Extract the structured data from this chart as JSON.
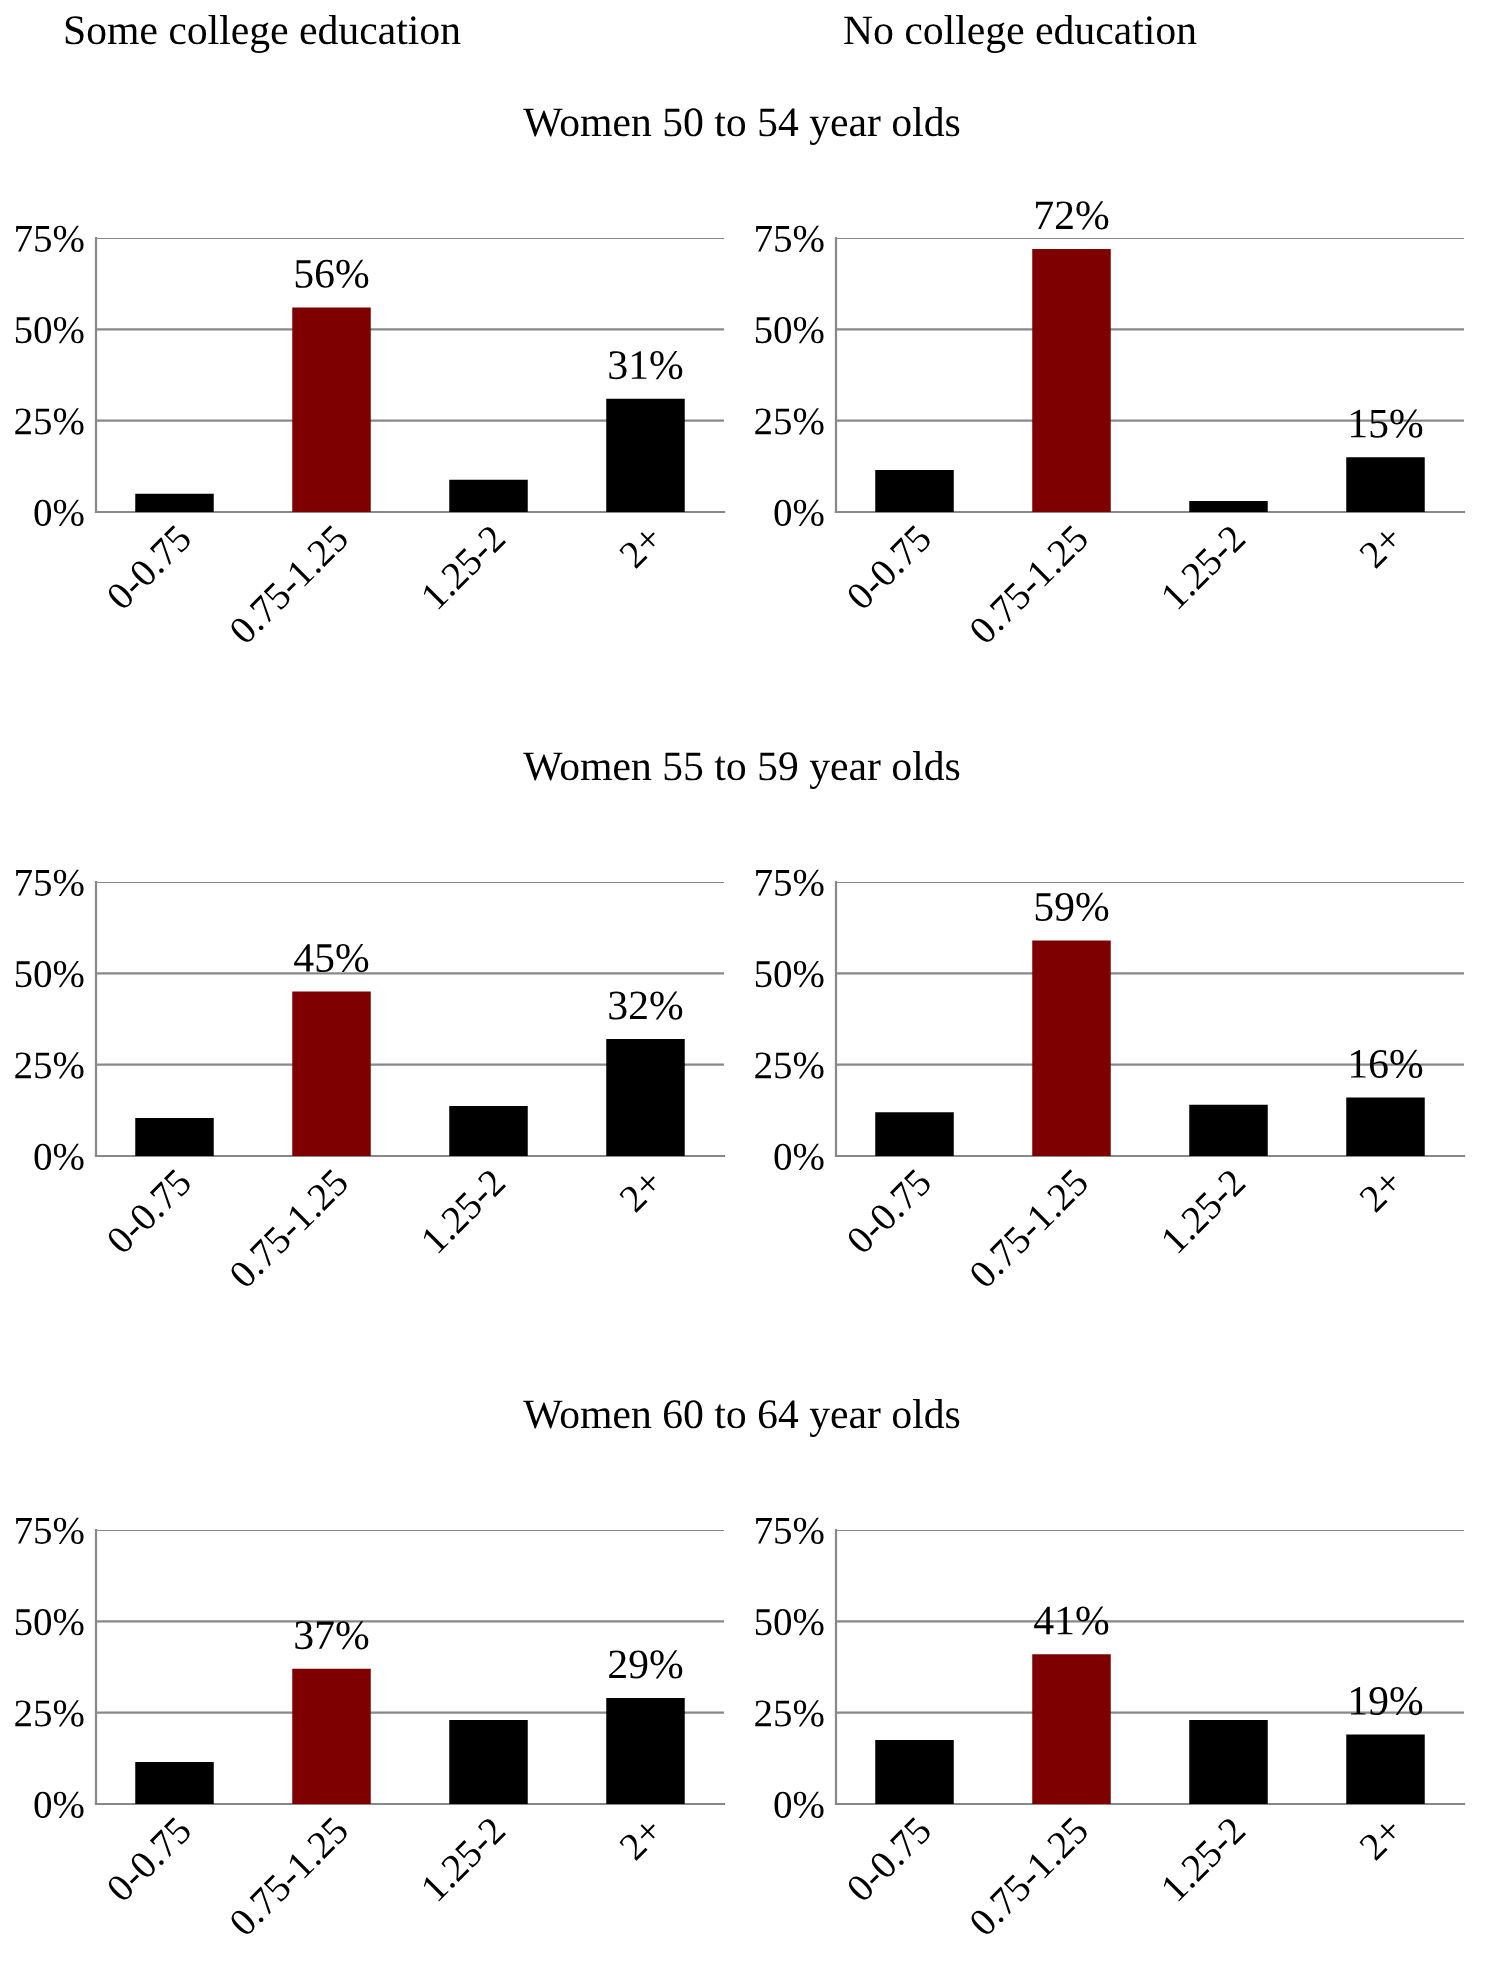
{
  "chart_data": [
    {
      "type": "bar",
      "subtitle": "Some college education",
      "title": "Women 50 to 54 year olds",
      "categories": [
        "0-0.75",
        "0.75-1.25",
        "1.25-2",
        "2+"
      ],
      "values": [
        5,
        56,
        8.8,
        31
      ],
      "value_labels": [
        null,
        "56%",
        null,
        "31%"
      ],
      "colors": [
        "#000000",
        "#7f0000",
        "#000000",
        "#000000"
      ],
      "ylim": [
        0,
        75
      ],
      "yticks": [
        {
          "value": 0,
          "label": "0%"
        },
        {
          "value": 25,
          "label": "25%"
        },
        {
          "value": 50,
          "label": "50%"
        },
        {
          "value": 75,
          "label": "75%"
        }
      ],
      "grid": "y"
    },
    {
      "type": "bar",
      "subtitle": "No college education",
      "categories": [
        "0-0.75",
        "0.75-1.25",
        "1.25-2",
        "2+"
      ],
      "values": [
        11.5,
        72,
        3,
        15
      ],
      "value_labels": [
        null,
        "72%",
        null,
        "15%"
      ],
      "colors": [
        "#000000",
        "#7f0000",
        "#000000",
        "#000000"
      ],
      "ylim": [
        0,
        75
      ],
      "yticks": [
        {
          "value": 0,
          "label": "0%"
        },
        {
          "value": 25,
          "label": "25%"
        },
        {
          "value": 50,
          "label": "50%"
        },
        {
          "value": 75,
          "label": "75%"
        }
      ],
      "grid": "y"
    },
    {
      "type": "bar",
      "title": "Women 55 to 59 year olds",
      "categories": [
        "0-0.75",
        "0.75-1.25",
        "1.25-2",
        "2+"
      ],
      "values": [
        10.4,
        45,
        13.7,
        32
      ],
      "value_labels": [
        null,
        "45%",
        null,
        "32%"
      ],
      "colors": [
        "#000000",
        "#7f0000",
        "#000000",
        "#000000"
      ],
      "ylim": [
        0,
        75
      ],
      "yticks": [
        {
          "value": 0,
          "label": "0%"
        },
        {
          "value": 25,
          "label": "25%"
        },
        {
          "value": 50,
          "label": "50%"
        },
        {
          "value": 75,
          "label": "75%"
        }
      ],
      "grid": "y"
    },
    {
      "type": "bar",
      "categories": [
        "0-0.75",
        "0.75-1.25",
        "1.25-2",
        "2+"
      ],
      "values": [
        12,
        59,
        14,
        16
      ],
      "value_labels": [
        null,
        "59%",
        null,
        "16%"
      ],
      "colors": [
        "#000000",
        "#7f0000",
        "#000000",
        "#000000"
      ],
      "ylim": [
        0,
        75
      ],
      "yticks": [
        {
          "value": 0,
          "label": "0%"
        },
        {
          "value": 25,
          "label": "25%"
        },
        {
          "value": 50,
          "label": "50%"
        },
        {
          "value": 75,
          "label": "75%"
        }
      ],
      "grid": "y"
    },
    {
      "type": "bar",
      "title": "Women 60 to 64 year olds",
      "categories": [
        "0-0.75",
        "0.75-1.25",
        "1.25-2",
        "2+"
      ],
      "values": [
        11.5,
        37,
        23,
        29
      ],
      "value_labels": [
        null,
        "37%",
        null,
        "29%"
      ],
      "colors": [
        "#000000",
        "#7f0000",
        "#000000",
        "#000000"
      ],
      "ylim": [
        0,
        75
      ],
      "yticks": [
        {
          "value": 0,
          "label": "0%"
        },
        {
          "value": 25,
          "label": "25%"
        },
        {
          "value": 50,
          "label": "50%"
        },
        {
          "value": 75,
          "label": "75%"
        }
      ],
      "grid": "y"
    },
    {
      "type": "bar",
      "categories": [
        "0-0.75",
        "0.75-1.25",
        "1.25-2",
        "2+"
      ],
      "values": [
        17.5,
        41,
        23,
        19
      ],
      "value_labels": [
        null,
        "41%",
        null,
        "19%"
      ],
      "colors": [
        "#000000",
        "#7f0000",
        "#000000",
        "#000000"
      ],
      "ylim": [
        0,
        75
      ],
      "yticks": [
        {
          "value": 0,
          "label": "0%"
        },
        {
          "value": 25,
          "label": "25%"
        },
        {
          "value": 50,
          "label": "50%"
        },
        {
          "value": 75,
          "label": "75%"
        }
      ],
      "grid": "y"
    }
  ]
}
